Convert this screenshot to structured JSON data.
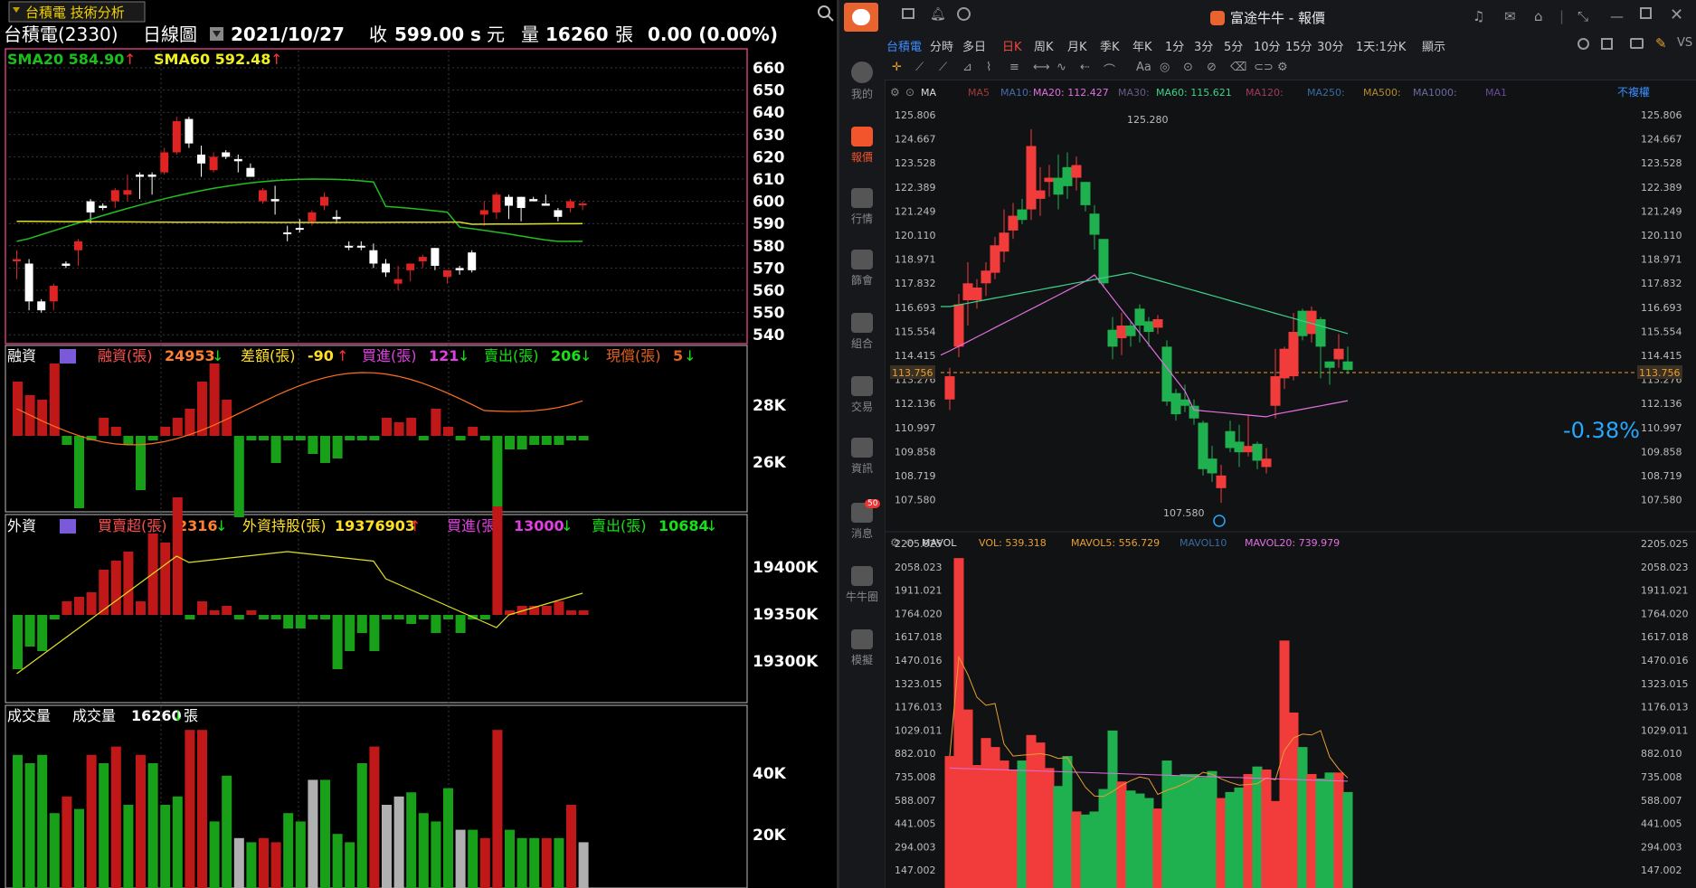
{
  "left": {
    "window_tab": "台積電 技術分析",
    "stock_name": "台積電(2330)",
    "chart_kind": "日線圖",
    "date": "2021/10/27",
    "close_label": "收",
    "close_value": "599.00",
    "close_flag": "s",
    "close_unit": "元",
    "volume_label": "量",
    "volume_value": "16260",
    "volume_unit": "張",
    "change": "0.00 (0.00%)",
    "sma20_label": "SMA20",
    "sma20_value": "584.90",
    "sma60_label": "SMA60",
    "sma60_value": "592.48",
    "price_axis": [
      "660",
      "650",
      "640",
      "630",
      "620",
      "610",
      "600",
      "590",
      "580",
      "570",
      "560",
      "550",
      "540"
    ],
    "margin_panel": {
      "title": "融資",
      "stats": [
        {
          "label": "融資(張)",
          "value": "24953",
          "dir": "down"
        },
        {
          "label": "差額(張)",
          "value": "-90",
          "dir": "up"
        },
        {
          "label": "買進(張)",
          "value": "121",
          "dir": "down"
        },
        {
          "label": "賣出(張)",
          "value": "206",
          "dir": "down"
        },
        {
          "label": "現償(張)",
          "value": "5",
          "dir": "down"
        }
      ],
      "axis": [
        "28K",
        "26K"
      ]
    },
    "foreign_panel": {
      "title": "外資",
      "stats": [
        {
          "label": "買賣超(張)",
          "value": "2316",
          "dir": "down"
        },
        {
          "label": "外資持股(張)",
          "value": "19376903",
          "dir": "up"
        },
        {
          "label": "買進(張)",
          "value": "13000",
          "dir": "down"
        },
        {
          "label": "賣出(張)",
          "value": "10684",
          "dir": "down"
        }
      ],
      "axis": [
        "19400K",
        "19350K",
        "19300K"
      ]
    },
    "volume_panel": {
      "title": "成交量",
      "label": "成交量",
      "value": "16260",
      "dir": "down",
      "unit": "張",
      "axis": [
        "40K",
        "20K"
      ]
    }
  },
  "right": {
    "app_title": "富途牛牛 - 報價",
    "rail": [
      {
        "label": "我的",
        "icon": "user-icon"
      },
      {
        "label": "報價",
        "icon": "quote-chart-icon",
        "active": true
      },
      {
        "label": "行情",
        "icon": "market-trend-icon"
      },
      {
        "label": "篩會",
        "icon": "filter-icon"
      },
      {
        "label": "組合",
        "icon": "portfolio-pie-icon"
      },
      {
        "label": "交易",
        "icon": "trade-icon"
      },
      {
        "label": "資訊",
        "icon": "news-icon"
      },
      {
        "label": "消息",
        "icon": "message-icon",
        "badge": "50"
      },
      {
        "label": "牛牛圈",
        "icon": "community-icon"
      },
      {
        "label": "模擬",
        "icon": "simulate-icon"
      }
    ],
    "timeframes": [
      "台積電",
      "分時",
      "多日",
      "日K",
      "周K",
      "月K",
      "季K",
      "年K",
      "1分",
      "3分",
      "5分",
      "10分",
      "15分",
      "30分",
      "1天:1分K",
      "顯示"
    ],
    "active_timeframe": "日K",
    "ma_legend": {
      "prefix": "MA",
      "items": [
        {
          "label": "MA5",
          "color": "#a23a3a"
        },
        {
          "label": "MA10:",
          "color": "#4a6aa8"
        },
        {
          "label": "MA20: 112.427",
          "color": "#e070e0"
        },
        {
          "label": "MA30:",
          "color": "#6a5a8a"
        },
        {
          "label": "MA60: 115.621",
          "color": "#3fd18a"
        },
        {
          "label": "MA120:",
          "color": "#a03a5a"
        },
        {
          "label": "MA250:",
          "color": "#3a6aa0"
        },
        {
          "label": "MA500:",
          "color": "#b08a30"
        },
        {
          "label": "MA1000:",
          "color": "#6a6aa0"
        },
        {
          "label": "MA1",
          "color": "#6a4a9a"
        }
      ],
      "adjust": "不複權"
    },
    "price_axis": [
      "125.806",
      "124.667",
      "123.528",
      "122.389",
      "121.249",
      "120.110",
      "118.971",
      "117.832",
      "116.693",
      "115.554",
      "114.415",
      "113.276",
      "112.136",
      "110.997",
      "109.858",
      "108.719",
      "107.580"
    ],
    "current_price": "113.756",
    "change_pct": "-0.38%",
    "high_label": "125.280",
    "low_label": "107.580",
    "vol_legend": {
      "prefix": "MAVOL",
      "vol": "VOL: 539.318",
      "mavol5": "MAVOL5: 556.729",
      "mavol10": "MAVOL10",
      "mavol20": "MAVOL20: 739.979"
    },
    "vol_axis": [
      "2205.025",
      "2058.023",
      "1911.021",
      "1764.020",
      "1617.018",
      "1470.016",
      "1323.015",
      "1176.013",
      "1029.011",
      "882.010",
      "735.008",
      "588.007",
      "441.005",
      "294.003",
      "147.002"
    ],
    "colors": {
      "up": "#f23b3b",
      "down": "#1fb04f",
      "accent": "#f2552c"
    }
  }
}
